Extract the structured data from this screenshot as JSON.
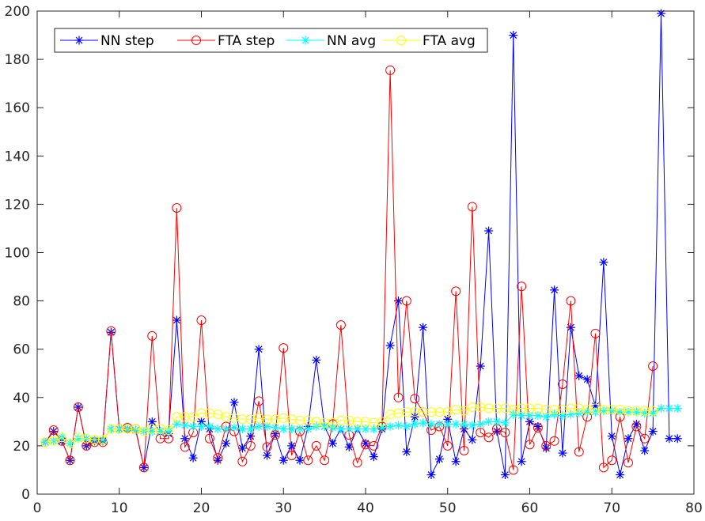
{
  "chart_data": {
    "type": "line",
    "title": "",
    "xlabel": "",
    "ylabel": "",
    "xlim": [
      0,
      80
    ],
    "ylim": [
      0,
      200
    ],
    "xticks": [
      0,
      10,
      20,
      30,
      40,
      50,
      60,
      70,
      80
    ],
    "yticks": [
      0,
      20,
      40,
      60,
      80,
      100,
      120,
      140,
      160,
      180,
      200
    ],
    "legend_position": "top-left",
    "series": [
      {
        "name": "NN step",
        "color": "#0000ff",
        "marker": "asterisk",
        "x": [
          1,
          2,
          3,
          4,
          5,
          6,
          7,
          8,
          9,
          10,
          11,
          12,
          13,
          14,
          15,
          16,
          17,
          18,
          19,
          20,
          21,
          22,
          23,
          24,
          25,
          26,
          27,
          28,
          29,
          30,
          31,
          32,
          33,
          34,
          35,
          36,
          37,
          38,
          39,
          40,
          41,
          42,
          43,
          44,
          45,
          46,
          47,
          48,
          49,
          50,
          51,
          52,
          53,
          54,
          55,
          56,
          57,
          58,
          59,
          60,
          61,
          62,
          63,
          64,
          65,
          66,
          67,
          68,
          69,
          70,
          71,
          72,
          73,
          74,
          75,
          76,
          77,
          78
        ],
        "y": [
          21.5,
          26,
          22,
          14,
          36,
          20,
          22,
          22,
          67,
          27,
          27,
          26.5,
          11,
          30,
          26,
          25,
          72,
          23,
          15,
          30,
          27,
          14,
          21,
          38,
          19,
          24,
          60,
          16,
          25,
          14,
          20,
          14,
          28,
          55.5,
          28,
          21,
          27,
          19.5,
          27,
          21,
          15.5,
          27,
          61.5,
          80,
          17.5,
          32,
          69,
          8,
          14.5,
          31,
          13.5,
          27,
          22.5,
          53,
          109,
          26,
          8,
          190,
          13.5,
          30,
          28,
          19,
          84.5,
          17,
          69,
          49,
          47.5,
          36.5,
          96,
          24,
          8,
          23,
          29,
          18,
          26,
          199,
          23,
          23
        ]
      },
      {
        "name": "FTA step",
        "color": "#ff0000",
        "marker": "circle",
        "x": [
          1,
          2,
          3,
          4,
          5,
          6,
          7,
          8,
          9,
          10,
          11,
          12,
          13,
          14,
          15,
          16,
          17,
          18,
          19,
          20,
          21,
          22,
          23,
          24,
          25,
          26,
          27,
          28,
          29,
          30,
          31,
          32,
          33,
          34,
          35,
          36,
          37,
          38,
          39,
          40,
          41,
          42,
          43,
          44,
          45,
          46,
          47,
          48,
          49,
          50,
          51,
          52,
          53,
          54,
          55,
          56,
          57,
          58,
          59,
          60,
          61,
          62,
          63,
          64,
          65,
          66,
          67,
          68,
          69,
          70,
          71,
          72,
          73,
          74,
          75
        ],
        "y": [
          21.5,
          26.5,
          22,
          14,
          36,
          20,
          21.5,
          21.5,
          67.5,
          27,
          27.5,
          27,
          11,
          65.5,
          23,
          23,
          118.5,
          19.5,
          25.5,
          72,
          23,
          15,
          28,
          26,
          13.5,
          20,
          38.5,
          19.5,
          24.5,
          60.5,
          16,
          26,
          14,
          20,
          14,
          29,
          70,
          24.5,
          13,
          20.5,
          20,
          28,
          175.5,
          40,
          80,
          39.5,
          34,
          26.5,
          28,
          20,
          84,
          18,
          119,
          25.5,
          23.5,
          27,
          25.5,
          10,
          86,
          20.5,
          27.5,
          20,
          22,
          45.5,
          80,
          17.5,
          32,
          66.5,
          11,
          14,
          32,
          13,
          28,
          23,
          53
        ]
      },
      {
        "name": "NN avg",
        "color": "#00ffff",
        "marker": "asterisk",
        "x": [
          1,
          2,
          3,
          4,
          5,
          6,
          7,
          8,
          9,
          10,
          11,
          12,
          13,
          14,
          15,
          16,
          17,
          18,
          19,
          20,
          21,
          22,
          23,
          24,
          25,
          26,
          27,
          28,
          29,
          30,
          31,
          32,
          33,
          34,
          35,
          36,
          37,
          38,
          39,
          40,
          41,
          42,
          43,
          44,
          45,
          46,
          47,
          48,
          49,
          50,
          51,
          52,
          53,
          54,
          55,
          56,
          57,
          58,
          59,
          60,
          61,
          62,
          63,
          64,
          65,
          66,
          67,
          68,
          69,
          70,
          71,
          72,
          73,
          74,
          75,
          76,
          77,
          78
        ],
        "y": [
          21.5,
          22,
          23.5,
          21,
          23,
          23,
          22.5,
          22.5,
          27,
          27,
          27,
          26.5,
          26,
          26,
          26,
          26,
          29,
          28.5,
          28,
          28,
          28,
          27,
          27,
          27.5,
          27,
          27,
          28,
          28,
          27.5,
          27,
          27,
          27,
          27,
          28,
          28,
          27.5,
          27,
          27,
          27,
          27,
          27,
          27.5,
          28,
          28.5,
          28,
          29,
          29.5,
          29,
          29,
          29,
          29,
          29,
          28.5,
          29,
          30,
          30,
          29.5,
          33,
          32.5,
          32.5,
          32.5,
          32,
          33,
          32.5,
          33,
          33.5,
          34,
          34,
          34.5,
          34.5,
          34,
          34,
          34,
          33.5,
          33.5,
          35.5,
          35.5,
          35.5
        ]
      },
      {
        "name": "FTA avg",
        "color": "#ffff00",
        "marker": "circle",
        "x": [
          1,
          2,
          3,
          4,
          5,
          6,
          7,
          8,
          9,
          10,
          11,
          12,
          13,
          14,
          15,
          16,
          17,
          18,
          19,
          20,
          21,
          22,
          23,
          24,
          25,
          26,
          27,
          28,
          29,
          30,
          31,
          32,
          33,
          34,
          35,
          36,
          37,
          38,
          39,
          40,
          41,
          42,
          43,
          44,
          45,
          46,
          47,
          48,
          49,
          50,
          51,
          52,
          53,
          54,
          55,
          56,
          57,
          58,
          59,
          60,
          61,
          62,
          63,
          64,
          65,
          66,
          67,
          68,
          69,
          70,
          71,
          72,
          73,
          74,
          75
        ],
        "y": [
          21.5,
          22,
          23.5,
          21,
          23.5,
          23,
          22.5,
          22.5,
          27,
          27,
          27,
          27,
          26,
          27,
          27,
          26.5,
          32,
          32,
          32,
          33.5,
          33.5,
          33,
          32,
          31.5,
          31,
          31,
          31.5,
          31,
          31,
          31.5,
          31,
          30.5,
          30.5,
          30,
          29.5,
          29.5,
          30.5,
          30.5,
          30,
          30,
          29.5,
          30,
          33,
          33.5,
          34,
          34,
          34,
          34,
          34,
          34,
          35,
          34.5,
          36,
          36,
          35.5,
          35.5,
          35.5,
          35,
          35.5,
          35.5,
          35.5,
          35,
          35,
          35,
          35.5,
          35.5,
          35,
          35.5,
          35,
          35,
          35,
          34.5,
          34.5,
          34.5,
          34.5
        ]
      }
    ]
  }
}
